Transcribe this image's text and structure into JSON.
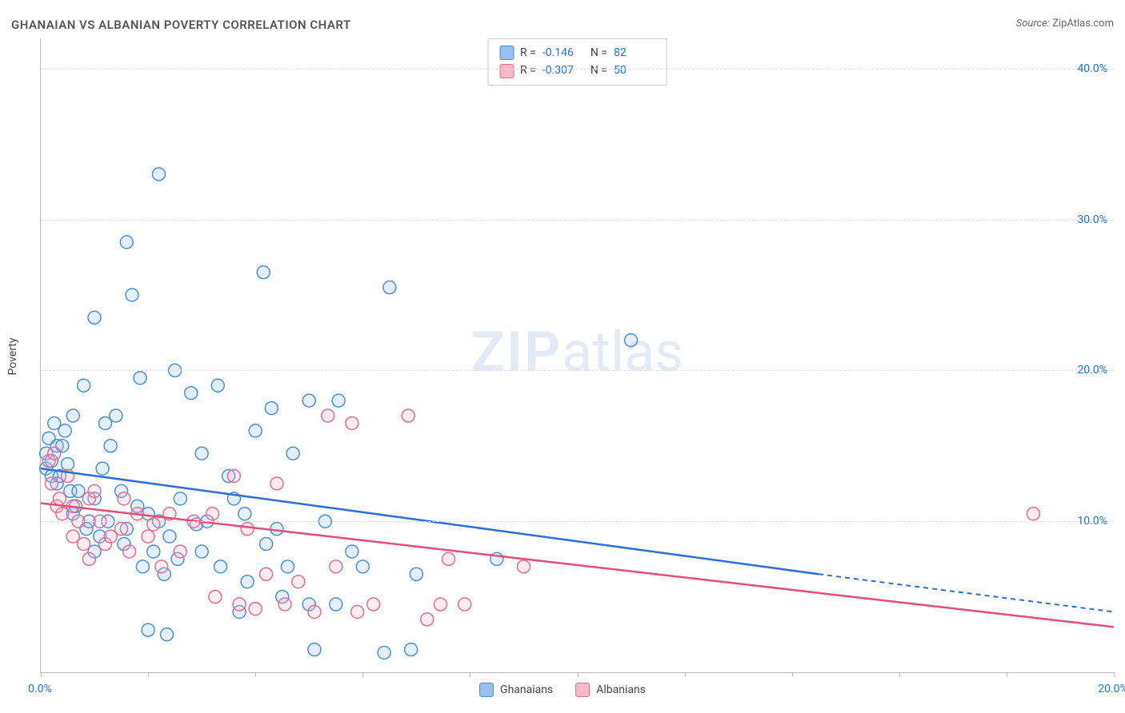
{
  "title": "GHANAIAN VS ALBANIAN POVERTY CORRELATION CHART",
  "source_prefix": "Source: ",
  "source_name": "ZipAtlas.com",
  "ylabel": "Poverty",
  "watermark_zip": "ZIP",
  "watermark_atlas": "atlas",
  "chart": {
    "type": "scatter",
    "xlim": [
      0,
      20
    ],
    "ylim": [
      0,
      42
    ],
    "x_ticks": [
      0,
      2,
      4,
      6,
      8,
      10,
      12,
      14,
      16,
      18,
      20
    ],
    "x_tick_labels": {
      "0": "0.0%",
      "20": "20.0%"
    },
    "y_gridlines": [
      10,
      20,
      30,
      40
    ],
    "y_tick_labels": {
      "10": "10.0%",
      "20": "20.0%",
      "30": "30.0%",
      "40": "40.0%"
    },
    "background_color": "#ffffff",
    "grid_color": "#dddddd",
    "axis_color": "#bbbbbb",
    "marker_radius": 8,
    "marker_stroke_width": 1.5,
    "marker_fill_opacity": 0.25,
    "series": [
      {
        "key": "ghanaians",
        "label": "Ghanaians",
        "fill": "#97bff0",
        "stroke": "#4a90d9",
        "line_color": "#2a6fd6",
        "R": "-0.146",
        "N": "82",
        "trend": {
          "x1": 0,
          "y1": 13.5,
          "x2": 14.5,
          "y2": 6.5,
          "x_ext": 20,
          "y_ext": 4.0
        },
        "points": [
          [
            0.1,
            14.5
          ],
          [
            0.1,
            13.5
          ],
          [
            0.15,
            15.5
          ],
          [
            0.2,
            13.0
          ],
          [
            0.2,
            14.0
          ],
          [
            0.25,
            16.5
          ],
          [
            0.3,
            15.0
          ],
          [
            0.3,
            12.5
          ],
          [
            0.35,
            13.0
          ],
          [
            0.4,
            15.0
          ],
          [
            0.45,
            16.0
          ],
          [
            0.5,
            13.8
          ],
          [
            0.55,
            12.0
          ],
          [
            0.6,
            17.0
          ],
          [
            0.6,
            10.5
          ],
          [
            0.65,
            11.0
          ],
          [
            0.7,
            12.0
          ],
          [
            0.8,
            19.0
          ],
          [
            0.85,
            9.5
          ],
          [
            0.9,
            10.0
          ],
          [
            1.0,
            23.5
          ],
          [
            1.0,
            11.5
          ],
          [
            1.0,
            8.0
          ],
          [
            1.1,
            9.0
          ],
          [
            1.15,
            13.5
          ],
          [
            1.2,
            16.5
          ],
          [
            1.25,
            10.0
          ],
          [
            1.3,
            15.0
          ],
          [
            1.4,
            17.0
          ],
          [
            1.5,
            12.0
          ],
          [
            1.55,
            8.5
          ],
          [
            1.6,
            9.5
          ],
          [
            1.6,
            28.5
          ],
          [
            1.7,
            25.0
          ],
          [
            1.8,
            11.0
          ],
          [
            1.85,
            19.5
          ],
          [
            1.9,
            7.0
          ],
          [
            2.0,
            10.5
          ],
          [
            2.0,
            2.8
          ],
          [
            2.1,
            8.0
          ],
          [
            2.2,
            33.0
          ],
          [
            2.2,
            10.0
          ],
          [
            2.3,
            6.5
          ],
          [
            2.35,
            2.5
          ],
          [
            2.4,
            9.0
          ],
          [
            2.5,
            20.0
          ],
          [
            2.55,
            7.5
          ],
          [
            2.6,
            11.5
          ],
          [
            2.8,
            18.5
          ],
          [
            2.9,
            9.8
          ],
          [
            3.0,
            8.0
          ],
          [
            3.0,
            14.5
          ],
          [
            3.1,
            10.0
          ],
          [
            3.3,
            19.0
          ],
          [
            3.35,
            7.0
          ],
          [
            3.5,
            13.0
          ],
          [
            3.6,
            11.5
          ],
          [
            3.7,
            4.0
          ],
          [
            3.8,
            10.5
          ],
          [
            3.85,
            6.0
          ],
          [
            4.0,
            16.0
          ],
          [
            4.15,
            26.5
          ],
          [
            4.2,
            8.5
          ],
          [
            4.3,
            17.5
          ],
          [
            4.4,
            9.5
          ],
          [
            4.5,
            5.0
          ],
          [
            4.6,
            7.0
          ],
          [
            4.7,
            14.5
          ],
          [
            5.0,
            18.0
          ],
          [
            5.0,
            4.5
          ],
          [
            5.1,
            1.5
          ],
          [
            5.3,
            10.0
          ],
          [
            5.5,
            4.5
          ],
          [
            5.55,
            18.0
          ],
          [
            5.8,
            8.0
          ],
          [
            6.0,
            7.0
          ],
          [
            6.4,
            1.3
          ],
          [
            6.5,
            25.5
          ],
          [
            6.9,
            1.5
          ],
          [
            7.0,
            6.5
          ],
          [
            8.5,
            7.5
          ],
          [
            11.0,
            22.0
          ]
        ]
      },
      {
        "key": "albanians",
        "label": "Albanians",
        "fill": "#f6b7c7",
        "stroke": "#e76b8f",
        "line_color": "#e15078",
        "R": "-0.307",
        "N": "50",
        "trend": {
          "x1": 0,
          "y1": 11.2,
          "x2": 20,
          "y2": 3.0,
          "x_ext": 20,
          "y_ext": 3.0
        },
        "points": [
          [
            0.15,
            14.0
          ],
          [
            0.2,
            12.5
          ],
          [
            0.25,
            14.5
          ],
          [
            0.3,
            11.0
          ],
          [
            0.35,
            11.5
          ],
          [
            0.4,
            10.5
          ],
          [
            0.5,
            13.0
          ],
          [
            0.6,
            11.0
          ],
          [
            0.6,
            9.0
          ],
          [
            0.7,
            10.0
          ],
          [
            0.8,
            8.5
          ],
          [
            0.9,
            11.5
          ],
          [
            0.9,
            7.5
          ],
          [
            1.0,
            12.0
          ],
          [
            1.1,
            10.0
          ],
          [
            1.2,
            8.5
          ],
          [
            1.3,
            9.0
          ],
          [
            1.5,
            9.5
          ],
          [
            1.55,
            11.5
          ],
          [
            1.65,
            8.0
          ],
          [
            1.8,
            10.5
          ],
          [
            2.0,
            9.0
          ],
          [
            2.1,
            9.8
          ],
          [
            2.25,
            7.0
          ],
          [
            2.4,
            10.5
          ],
          [
            2.6,
            8.0
          ],
          [
            2.85,
            10.0
          ],
          [
            3.2,
            10.5
          ],
          [
            3.25,
            5.0
          ],
          [
            3.6,
            13.0
          ],
          [
            3.7,
            4.5
          ],
          [
            3.85,
            9.5
          ],
          [
            4.0,
            4.2
          ],
          [
            4.2,
            6.5
          ],
          [
            4.4,
            12.5
          ],
          [
            4.55,
            4.5
          ],
          [
            4.8,
            6.0
          ],
          [
            5.1,
            4.0
          ],
          [
            5.35,
            17.0
          ],
          [
            5.5,
            7.0
          ],
          [
            5.8,
            16.5
          ],
          [
            5.9,
            4.0
          ],
          [
            6.2,
            4.5
          ],
          [
            6.85,
            17.0
          ],
          [
            7.2,
            3.5
          ],
          [
            7.45,
            4.5
          ],
          [
            7.6,
            7.5
          ],
          [
            7.9,
            4.5
          ],
          [
            9.0,
            7.0
          ],
          [
            18.5,
            10.5
          ]
        ]
      }
    ]
  },
  "legend_labels": {
    "R": "R =",
    "N": "N ="
  }
}
